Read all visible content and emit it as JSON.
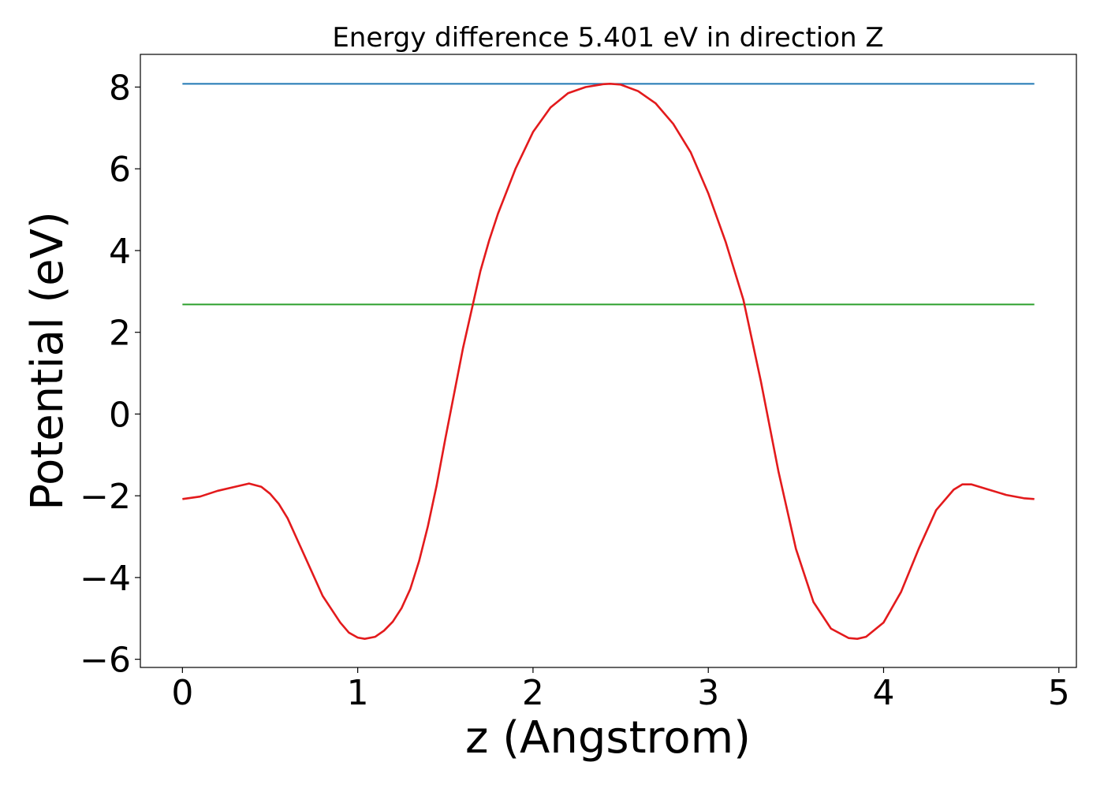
{
  "chart_data": {
    "type": "line",
    "title": "Energy difference 5.401 eV in direction Z",
    "xlabel": "z (Angstrom)",
    "ylabel": "Potential (eV)",
    "xlim": [
      -0.24,
      5.1
    ],
    "ylim": [
      -6.2,
      8.8
    ],
    "x_ticks": [
      0,
      1,
      2,
      3,
      4,
      5
    ],
    "x_tick_labels": [
      "0",
      "1",
      "2",
      "3",
      "4",
      "5"
    ],
    "y_ticks": [
      -6,
      -4,
      -2,
      0,
      2,
      4,
      6,
      8
    ],
    "y_tick_labels": [
      "−6",
      "−4",
      "−2",
      "0",
      "2",
      "4",
      "6",
      "8"
    ],
    "grid": false,
    "series": [
      {
        "color": "#1f77b4",
        "x": [
          0,
          4.86
        ],
        "y": [
          8.08,
          8.08
        ]
      },
      {
        "color": "#2ca02c",
        "x": [
          0,
          4.86
        ],
        "y": [
          2.68,
          2.68
        ]
      },
      {
        "color": "#e31a1c",
        "x": [
          0,
          0.1,
          0.2,
          0.3,
          0.38,
          0.45,
          0.5,
          0.55,
          0.6,
          0.7,
          0.8,
          0.9,
          0.95,
          1.0,
          1.04,
          1.1,
          1.15,
          1.2,
          1.25,
          1.3,
          1.35,
          1.4,
          1.45,
          1.5,
          1.6,
          1.7,
          1.75,
          1.8,
          1.9,
          2.0,
          2.1,
          2.2,
          2.3,
          2.4,
          2.44,
          2.5,
          2.6,
          2.7,
          2.8,
          2.9,
          3.0,
          3.1,
          3.2,
          3.3,
          3.4,
          3.5,
          3.6,
          3.7,
          3.8,
          3.85,
          3.9,
          4.0,
          4.1,
          4.2,
          4.3,
          4.4,
          4.45,
          4.5,
          4.6,
          4.7,
          4.8,
          4.86
        ],
        "y": [
          -2.08,
          -2.02,
          -1.88,
          -1.78,
          -1.7,
          -1.78,
          -1.95,
          -2.2,
          -2.55,
          -3.5,
          -4.45,
          -5.1,
          -5.35,
          -5.47,
          -5.5,
          -5.45,
          -5.3,
          -5.08,
          -4.75,
          -4.28,
          -3.6,
          -2.75,
          -1.75,
          -0.6,
          1.6,
          3.5,
          4.25,
          4.9,
          6.0,
          6.9,
          7.5,
          7.85,
          8.0,
          8.07,
          8.08,
          8.06,
          7.9,
          7.6,
          7.1,
          6.4,
          5.4,
          4.2,
          2.8,
          0.8,
          -1.4,
          -3.3,
          -4.6,
          -5.25,
          -5.48,
          -5.5,
          -5.45,
          -5.1,
          -4.35,
          -3.3,
          -2.35,
          -1.85,
          -1.72,
          -1.72,
          -1.85,
          -1.98,
          -2.06,
          -2.08
        ]
      }
    ]
  }
}
